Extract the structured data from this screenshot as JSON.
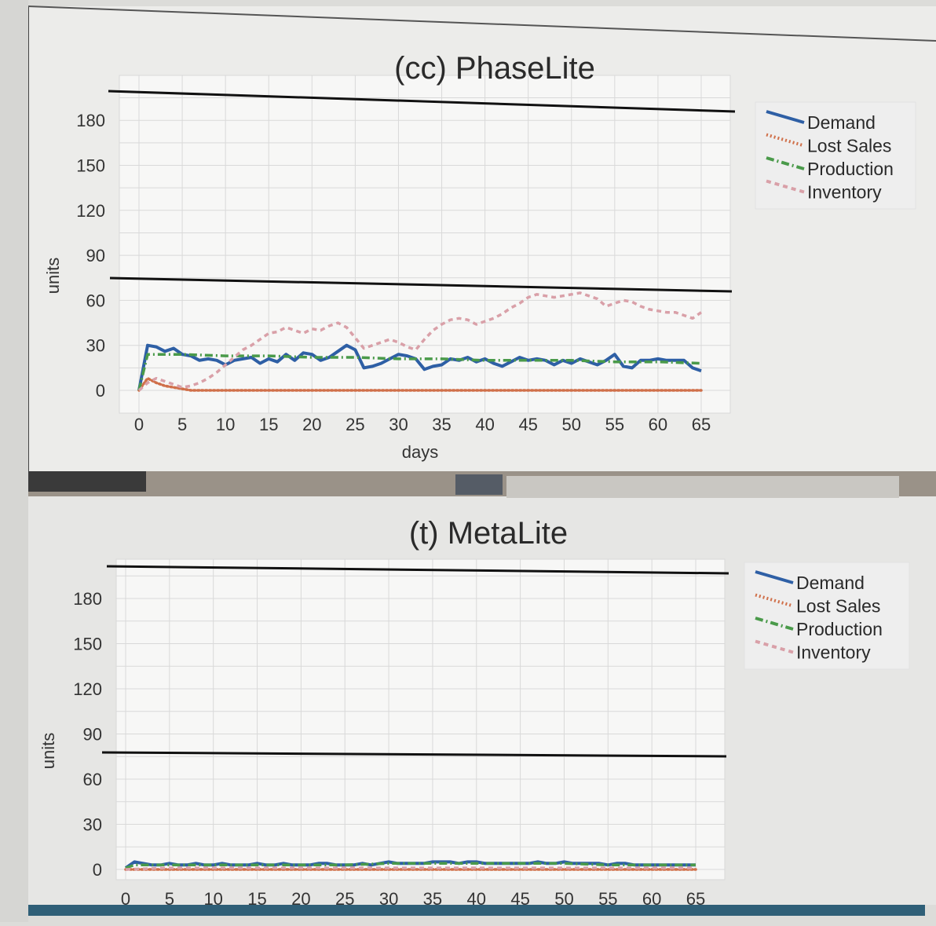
{
  "chart_data": [
    {
      "type": "line",
      "title": "(cc) PhaseLite",
      "xlabel": "days",
      "ylabel": "units",
      "xlim": [
        0,
        65
      ],
      "ylim": [
        0,
        200
      ],
      "xticks": [
        0,
        5,
        10,
        15,
        20,
        25,
        30,
        35,
        40,
        45,
        50,
        55,
        60,
        65
      ],
      "yticks": [
        0,
        30,
        60,
        90,
        120,
        150,
        180
      ],
      "grid": true,
      "legend_position": "top-right, outside plot",
      "series": [
        {
          "name": "Demand",
          "style": "solid",
          "color": "#2e5fa5",
          "x": [
            0,
            1,
            2,
            3,
            4,
            5,
            6,
            7,
            8,
            9,
            10,
            11,
            12,
            13,
            14,
            15,
            16,
            17,
            18,
            19,
            20,
            21,
            22,
            23,
            24,
            25,
            26,
            27,
            28,
            29,
            30,
            31,
            32,
            33,
            34,
            35,
            36,
            37,
            38,
            39,
            40,
            41,
            42,
            43,
            44,
            45,
            46,
            47,
            48,
            49,
            50,
            51,
            52,
            53,
            54,
            55,
            56,
            57,
            58,
            59,
            60,
            61,
            62,
            63,
            64,
            65
          ],
          "values": [
            0,
            30,
            29,
            26,
            28,
            24,
            23,
            20,
            21,
            20,
            17,
            20,
            21,
            22,
            18,
            21,
            19,
            24,
            20,
            25,
            24,
            20,
            22,
            26,
            30,
            27,
            15,
            16,
            18,
            21,
            24,
            23,
            21,
            14,
            16,
            17,
            21,
            20,
            22,
            19,
            21,
            18,
            16,
            19,
            22,
            20,
            21,
            20,
            17,
            20,
            18,
            21,
            19,
            17,
            20,
            24,
            16,
            15,
            20,
            20,
            21,
            20,
            20,
            20,
            15,
            13
          ]
        },
        {
          "name": "Lost Sales",
          "style": "dotted",
          "color": "#d0704a",
          "x": [
            0,
            1,
            2,
            3,
            4,
            5,
            6,
            7,
            8,
            9,
            10,
            15,
            20,
            25,
            30,
            35,
            40,
            45,
            50,
            55,
            60,
            65
          ],
          "values": [
            0,
            8,
            5,
            3,
            2,
            1,
            0,
            0,
            0,
            0,
            0,
            0,
            0,
            0,
            0,
            0,
            0,
            0,
            0,
            0,
            0,
            0
          ]
        },
        {
          "name": "Production",
          "style": "dash-dot",
          "color": "#4a9a4a",
          "x": [
            0,
            1,
            5,
            10,
            15,
            20,
            25,
            30,
            35,
            40,
            45,
            50,
            55,
            60,
            65
          ],
          "values": [
            0,
            24,
            24,
            23,
            23,
            22,
            22,
            21,
            21,
            20,
            20,
            20,
            19,
            19,
            18
          ]
        },
        {
          "name": "Inventory",
          "style": "dashed",
          "color": "#d9a0a8",
          "x": [
            0,
            1,
            2,
            3,
            4,
            5,
            6,
            7,
            8,
            9,
            10,
            11,
            12,
            13,
            14,
            15,
            16,
            17,
            18,
            19,
            20,
            21,
            22,
            23,
            24,
            25,
            26,
            27,
            28,
            29,
            30,
            31,
            32,
            33,
            34,
            35,
            36,
            37,
            38,
            39,
            40,
            41,
            42,
            43,
            44,
            45,
            46,
            47,
            48,
            49,
            50,
            51,
            52,
            53,
            54,
            55,
            56,
            57,
            58,
            59,
            60,
            61,
            62,
            63,
            64,
            65
          ],
          "values": [
            0,
            5,
            8,
            6,
            4,
            2,
            3,
            5,
            8,
            12,
            17,
            22,
            27,
            30,
            34,
            38,
            39,
            42,
            40,
            38,
            41,
            40,
            43,
            45,
            42,
            35,
            28,
            30,
            32,
            34,
            32,
            29,
            27,
            34,
            40,
            44,
            47,
            48,
            47,
            44,
            46,
            48,
            51,
            55,
            58,
            62,
            64,
            63,
            62,
            63,
            64,
            65,
            63,
            61,
            56,
            58,
            60,
            59,
            56,
            54,
            53,
            52,
            52,
            50,
            48,
            52
          ]
        }
      ]
    },
    {
      "type": "line",
      "title": "(t) MetaLite",
      "xlabel": "",
      "ylabel": "units",
      "xlim": [
        0,
        65
      ],
      "ylim": [
        0,
        200
      ],
      "xticks": [
        0,
        5,
        10,
        15,
        20,
        25,
        30,
        35,
        40,
        45,
        50,
        55,
        60,
        65
      ],
      "yticks": [
        0,
        30,
        60,
        90,
        120,
        150,
        180
      ],
      "grid": true,
      "legend_position": "top-right, outside plot",
      "series": [
        {
          "name": "Demand",
          "style": "solid",
          "color": "#2e5fa5",
          "x": [
            0,
            1,
            2,
            3,
            4,
            5,
            6,
            7,
            8,
            9,
            10,
            11,
            12,
            13,
            14,
            15,
            16,
            17,
            18,
            19,
            20,
            21,
            22,
            23,
            24,
            25,
            26,
            27,
            28,
            29,
            30,
            31,
            32,
            33,
            34,
            35,
            36,
            37,
            38,
            39,
            40,
            41,
            42,
            43,
            44,
            45,
            46,
            47,
            48,
            49,
            50,
            51,
            52,
            53,
            54,
            55,
            56,
            57,
            58,
            59,
            60,
            61,
            62,
            63,
            64,
            65
          ],
          "values": [
            1,
            5,
            4,
            3,
            3,
            4,
            3,
            3,
            4,
            3,
            3,
            4,
            3,
            3,
            3,
            4,
            3,
            3,
            4,
            3,
            3,
            3,
            4,
            4,
            3,
            3,
            3,
            4,
            3,
            4,
            5,
            4,
            4,
            4,
            4,
            5,
            5,
            5,
            4,
            5,
            5,
            4,
            4,
            4,
            4,
            4,
            4,
            5,
            4,
            4,
            5,
            4,
            4,
            4,
            4,
            3,
            4,
            4,
            3,
            3,
            3,
            3,
            3,
            3,
            3,
            3
          ]
        },
        {
          "name": "Lost Sales",
          "style": "dotted",
          "color": "#d0704a",
          "x": [
            0,
            5,
            10,
            15,
            20,
            25,
            30,
            35,
            40,
            45,
            50,
            55,
            60,
            65
          ],
          "values": [
            0,
            0,
            0,
            0,
            0,
            0,
            0,
            0,
            0,
            0,
            0,
            0,
            0,
            0
          ]
        },
        {
          "name": "Production",
          "style": "dash-dot",
          "color": "#4a9a4a",
          "x": [
            0,
            1,
            5,
            10,
            15,
            20,
            25,
            30,
            35,
            40,
            45,
            50,
            55,
            60,
            65
          ],
          "values": [
            1,
            3,
            3,
            3,
            3,
            3,
            3,
            4,
            4,
            4,
            4,
            4,
            3,
            3,
            3
          ]
        },
        {
          "name": "Inventory",
          "style": "dashed",
          "color": "#d9a0a8",
          "x": [
            0,
            5,
            10,
            15,
            20,
            25,
            30,
            35,
            40,
            45,
            50,
            55,
            60,
            65
          ],
          "values": [
            0,
            1,
            1,
            1,
            1,
            1,
            1,
            1,
            1,
            1,
            1,
            1,
            1,
            1
          ]
        }
      ]
    }
  ]
}
